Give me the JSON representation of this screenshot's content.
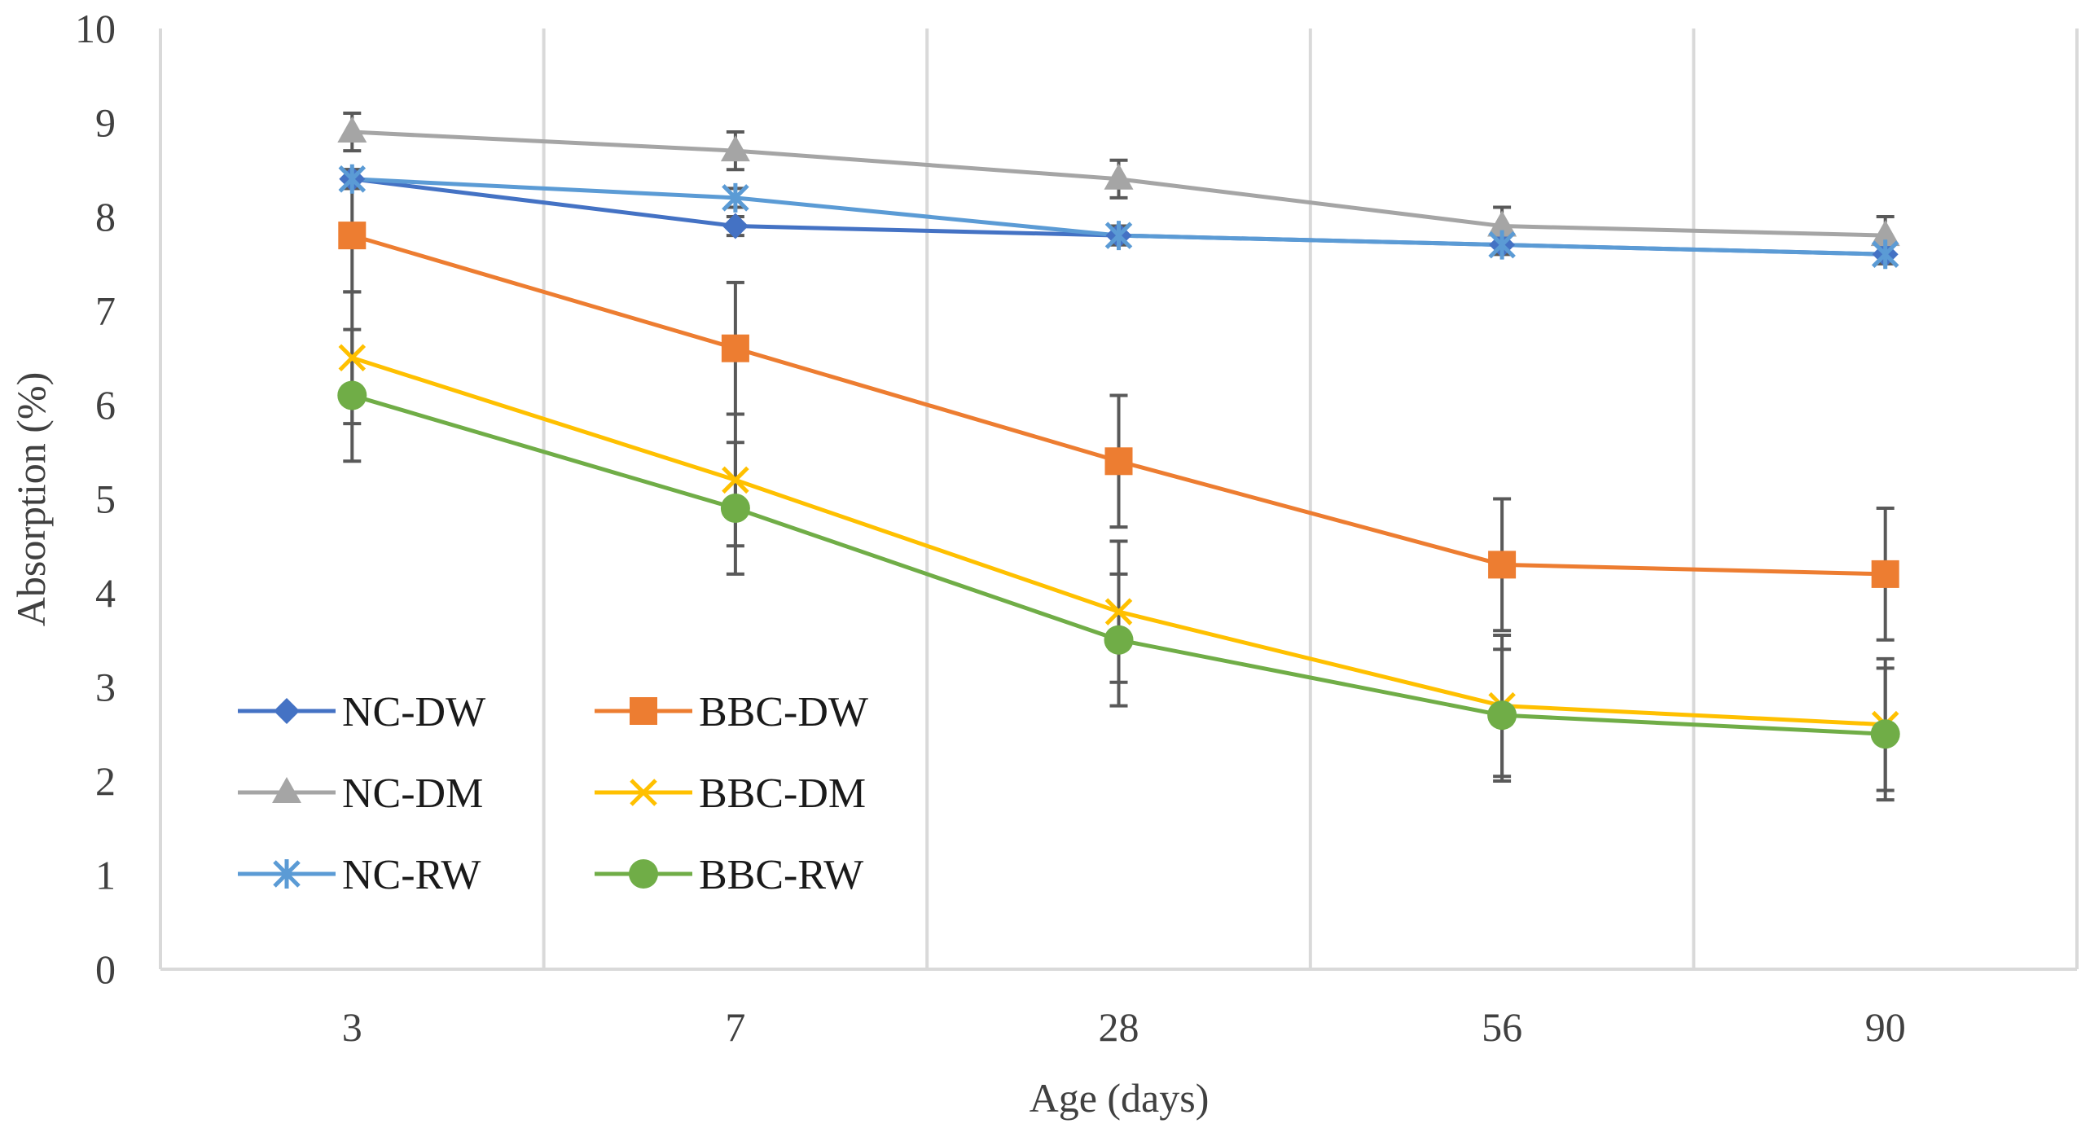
{
  "chart_data": {
    "type": "line",
    "title": "",
    "xlabel": "Age (days)",
    "ylabel": "Absorption (%)",
    "categories": [
      "3",
      "7",
      "28",
      "56",
      "90"
    ],
    "ylim": [
      0,
      10
    ],
    "yticks": [
      "0",
      "1",
      "2",
      "3",
      "4",
      "5",
      "6",
      "7",
      "8",
      "9",
      "10"
    ],
    "grid": "vertical",
    "legend_position": "bottom-left, inside plot, two columns",
    "series": [
      {
        "name": "NC-DW",
        "color": "#4472C4",
        "marker": "diamond",
        "values": [
          8.4,
          7.9,
          7.8,
          7.7,
          7.6
        ],
        "errors": [
          0.1,
          0.1,
          0.1,
          0.1,
          0.1
        ]
      },
      {
        "name": "BBC-DW",
        "color": "#ED7D31",
        "marker": "square",
        "values": [
          7.8,
          6.6,
          5.4,
          4.3,
          4.2
        ],
        "errors": [
          0.6,
          0.7,
          0.7,
          0.7,
          0.7
        ]
      },
      {
        "name": "NC-DM",
        "color": "#A5A5A5",
        "marker": "triangle",
        "values": [
          8.9,
          8.7,
          8.4,
          7.9,
          7.8
        ],
        "errors": [
          0.2,
          0.2,
          0.2,
          0.2,
          0.2
        ]
      },
      {
        "name": "BBC-DM",
        "color": "#FFC000",
        "marker": "x",
        "values": [
          6.5,
          5.2,
          3.8,
          2.8,
          2.6
        ],
        "errors": [
          0.7,
          0.7,
          0.75,
          0.75,
          0.7
        ]
      },
      {
        "name": "NC-RW",
        "color": "#5B9BD5",
        "marker": "star",
        "values": [
          8.4,
          8.2,
          7.8,
          7.7,
          7.6
        ],
        "errors": [
          0.1,
          0.1,
          0.1,
          0.1,
          0.1
        ]
      },
      {
        "name": "BBC-RW",
        "color": "#70AD47",
        "marker": "circle",
        "values": [
          6.1,
          4.9,
          3.5,
          2.7,
          2.5
        ],
        "errors": [
          0.7,
          0.7,
          0.7,
          0.7,
          0.7
        ]
      }
    ]
  }
}
